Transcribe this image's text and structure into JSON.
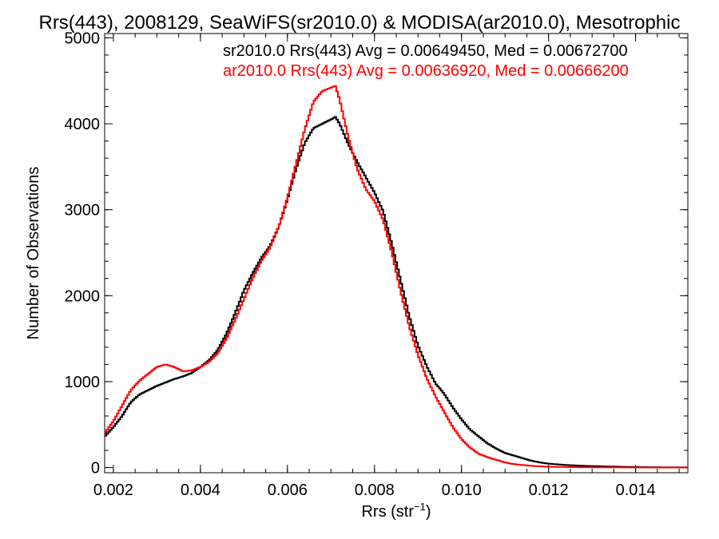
{
  "chart_data": {
    "type": "line",
    "title": "Rrs(443), 2008129, SeaWiFS(sr2010.0) & MODISA(ar2010.0), Mesotrophic",
    "xlabel_main": "Rrs (str",
    "xlabel_sup": "−1",
    "xlabel_tail": ")",
    "ylabel": "Number of Observations",
    "xlim": [
      0.0018,
      0.0152
    ],
    "ylim": [
      -60,
      5050
    ],
    "x_ticks": [
      {
        "value": 0.002,
        "label": "0.002"
      },
      {
        "value": 0.004,
        "label": "0.004"
      },
      {
        "value": 0.006,
        "label": "0.006"
      },
      {
        "value": 0.008,
        "label": "0.008"
      },
      {
        "value": 0.01,
        "label": "0.010"
      },
      {
        "value": 0.012,
        "label": "0.012"
      },
      {
        "value": 0.014,
        "label": "0.014"
      }
    ],
    "y_ticks": [
      {
        "value": 0,
        "label": "0"
      },
      {
        "value": 1000,
        "label": "1000"
      },
      {
        "value": 2000,
        "label": "2000"
      },
      {
        "value": 3000,
        "label": "3000"
      },
      {
        "value": 4000,
        "label": "4000"
      },
      {
        "value": 5000,
        "label": "5000"
      }
    ],
    "grid": false,
    "legend_placement": "top-right",
    "colors": {
      "sr2010": "#000000",
      "ar2010": "#ff0000"
    },
    "series": [
      {
        "name": "sr2010.0 Rrs(443) Avg = 0.00649450, Med = 0.00672700",
        "color": "#000000",
        "x": [
          0.0018,
          0.002,
          0.0022,
          0.0024,
          0.0026,
          0.0028,
          0.003,
          0.0032,
          0.0034,
          0.0036,
          0.0038,
          0.004,
          0.0042,
          0.0044,
          0.0046,
          0.0048,
          0.005,
          0.0052,
          0.0054,
          0.0056,
          0.0058,
          0.006,
          0.0062,
          0.0064,
          0.0066,
          0.0068,
          0.007,
          0.0071,
          0.0072,
          0.0074,
          0.0076,
          0.0078,
          0.008,
          0.0082,
          0.0084,
          0.0086,
          0.0088,
          0.009,
          0.0092,
          0.0094,
          0.0096,
          0.0098,
          0.01,
          0.0102,
          0.0104,
          0.0106,
          0.0108,
          0.011,
          0.0112,
          0.0114,
          0.0116,
          0.0118,
          0.012,
          0.0124,
          0.0128,
          0.0132,
          0.0136,
          0.014,
          0.0144,
          0.0148,
          0.0152
        ],
        "y": [
          360,
          470,
          600,
          760,
          850,
          900,
          950,
          990,
          1030,
          1060,
          1100,
          1170,
          1250,
          1370,
          1560,
          1800,
          2060,
          2260,
          2440,
          2580,
          2800,
          3120,
          3480,
          3780,
          3950,
          4000,
          4050,
          4080,
          4000,
          3760,
          3560,
          3380,
          3200,
          2980,
          2600,
          2180,
          1760,
          1420,
          1180,
          980,
          860,
          700,
          560,
          440,
          360,
          280,
          220,
          170,
          140,
          110,
          80,
          60,
          45,
          30,
          20,
          15,
          10,
          6,
          4,
          3,
          2
        ]
      },
      {
        "name": "ar2010.0 Rrs(443) Avg = 0.00636920, Med = 0.00666200",
        "color": "#ff0000",
        "x": [
          0.0018,
          0.002,
          0.0022,
          0.0024,
          0.0026,
          0.0028,
          0.003,
          0.0032,
          0.0034,
          0.0036,
          0.0038,
          0.004,
          0.0042,
          0.0044,
          0.0046,
          0.0048,
          0.005,
          0.0052,
          0.0054,
          0.0056,
          0.0058,
          0.006,
          0.0062,
          0.0064,
          0.0066,
          0.0068,
          0.007,
          0.0071,
          0.0072,
          0.0074,
          0.0076,
          0.0078,
          0.008,
          0.0082,
          0.0084,
          0.0086,
          0.0088,
          0.009,
          0.0092,
          0.0094,
          0.0096,
          0.0098,
          0.01,
          0.0102,
          0.0104,
          0.0106,
          0.0108,
          0.011,
          0.0112,
          0.0114,
          0.0116,
          0.0118,
          0.012,
          0.0124,
          0.0128,
          0.0132,
          0.0136,
          0.014,
          0.0144,
          0.0148,
          0.0152
        ],
        "y": [
          400,
          540,
          720,
          900,
          1010,
          1090,
          1170,
          1200,
          1170,
          1120,
          1130,
          1170,
          1230,
          1330,
          1500,
          1720,
          1960,
          2200,
          2400,
          2560,
          2800,
          3140,
          3540,
          3940,
          4260,
          4380,
          4420,
          4440,
          4280,
          3840,
          3480,
          3240,
          3100,
          2880,
          2500,
          2050,
          1640,
          1310,
          1040,
          830,
          650,
          470,
          330,
          230,
          160,
          120,
          90,
          60,
          40,
          30,
          20,
          15,
          10,
          6,
          4,
          3,
          2,
          1,
          1,
          0,
          0
        ]
      }
    ]
  }
}
